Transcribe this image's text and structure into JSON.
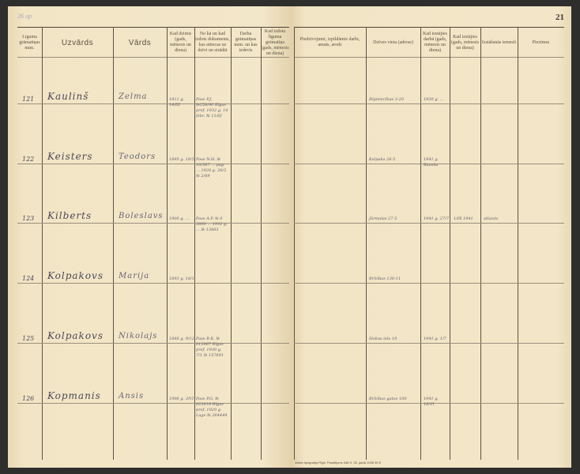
{
  "page_number": "21",
  "pencil_note": "26 op",
  "columns": [
    "Līguma grāmatiņas num.",
    "Uzvārds",
    "Vārds",
    "Kad dzimis (gads, mēnesis un diena)",
    "No kā un kad izdots dokuments, kas attiecas uz dzīvi un strādāt",
    "Darba grāmatiņas num. un kas izdevis",
    "Kad izdota līguma grāmatiņa (gads, mēnesis un diena)",
    "Piedzīvojumi, izpildāmie darbi, amats, arods",
    "Dzīves vieta (adrese)",
    "Kad iestājies darbā (gads, mēnesis un diena)",
    "Kad izstājies (gads, mēnesis un diena)",
    "Izstāšanās iemesli",
    "Piezīmes"
  ],
  "rows": [
    {
      "num": "121",
      "surname": "Kaulinš",
      "name": "Zelma",
      "born": "1911 g. 14/III",
      "document": "Pase P.J. №258/90 Rīgas pref. 1932 g. 14 febr. № 11/6f",
      "address": "Rūpniecības 3-20",
      "joined": "1920 g. ...",
      "left": "",
      "reason": ""
    },
    {
      "num": "122",
      "surname": "Keisters",
      "name": "Teodors",
      "born": "1895 g. 19/5",
      "document": "Pase N.H. № 10/587 ... pag. ... 1928 g. 26/2 № 2/89",
      "address": "Kalpaka 28-5",
      "joined": "1941 g. Bauska",
      "left": "",
      "reason": ""
    },
    {
      "num": "123",
      "surname": "Kilberts",
      "name": "Boleslavs",
      "born": "1900 g. ...",
      "document": "Pase A.P. № 0 2800 ... 1932 g. ... № 13863",
      "address": "Jūrmalas 27-5",
      "joined": "1941 g. 27/7",
      "left": "1/IX 1941",
      "reason": "atlaists"
    },
    {
      "num": "124",
      "surname": "Kolpakovs",
      "name": "Marija",
      "born": "1893 g. 18/1",
      "document": "",
      "address": "Brīvības 130-11",
      "joined": "",
      "left": "",
      "reason": ""
    },
    {
      "num": "125",
      "surname": "Kolpakovs",
      "name": "Nikolajs",
      "born": "1886 g. 9/12",
      "document": "Pase B.K. № 012867 Rīgas pref. 1930 g. 7/1 № 157691",
      "address": "Slokas iela 10",
      "joined": "1941 g. 1/7",
      "left": "",
      "reason": ""
    },
    {
      "num": "126",
      "surname": "Kopmanis",
      "name": "Ansis",
      "born": "1906 g. 3/VI",
      "document": "Pase P.G. № 022816 Rīgas pref. 1920 g. Lage № 264444",
      "address": "Brīvības gatve 100",
      "joined": "1941 g. 16/VI",
      "left": "",
      "reason": ""
    }
  ],
  "footer": "Valsts tipografija Rīgā. Pasūtījums 548 S. 30. gadā 1938 30 8"
}
